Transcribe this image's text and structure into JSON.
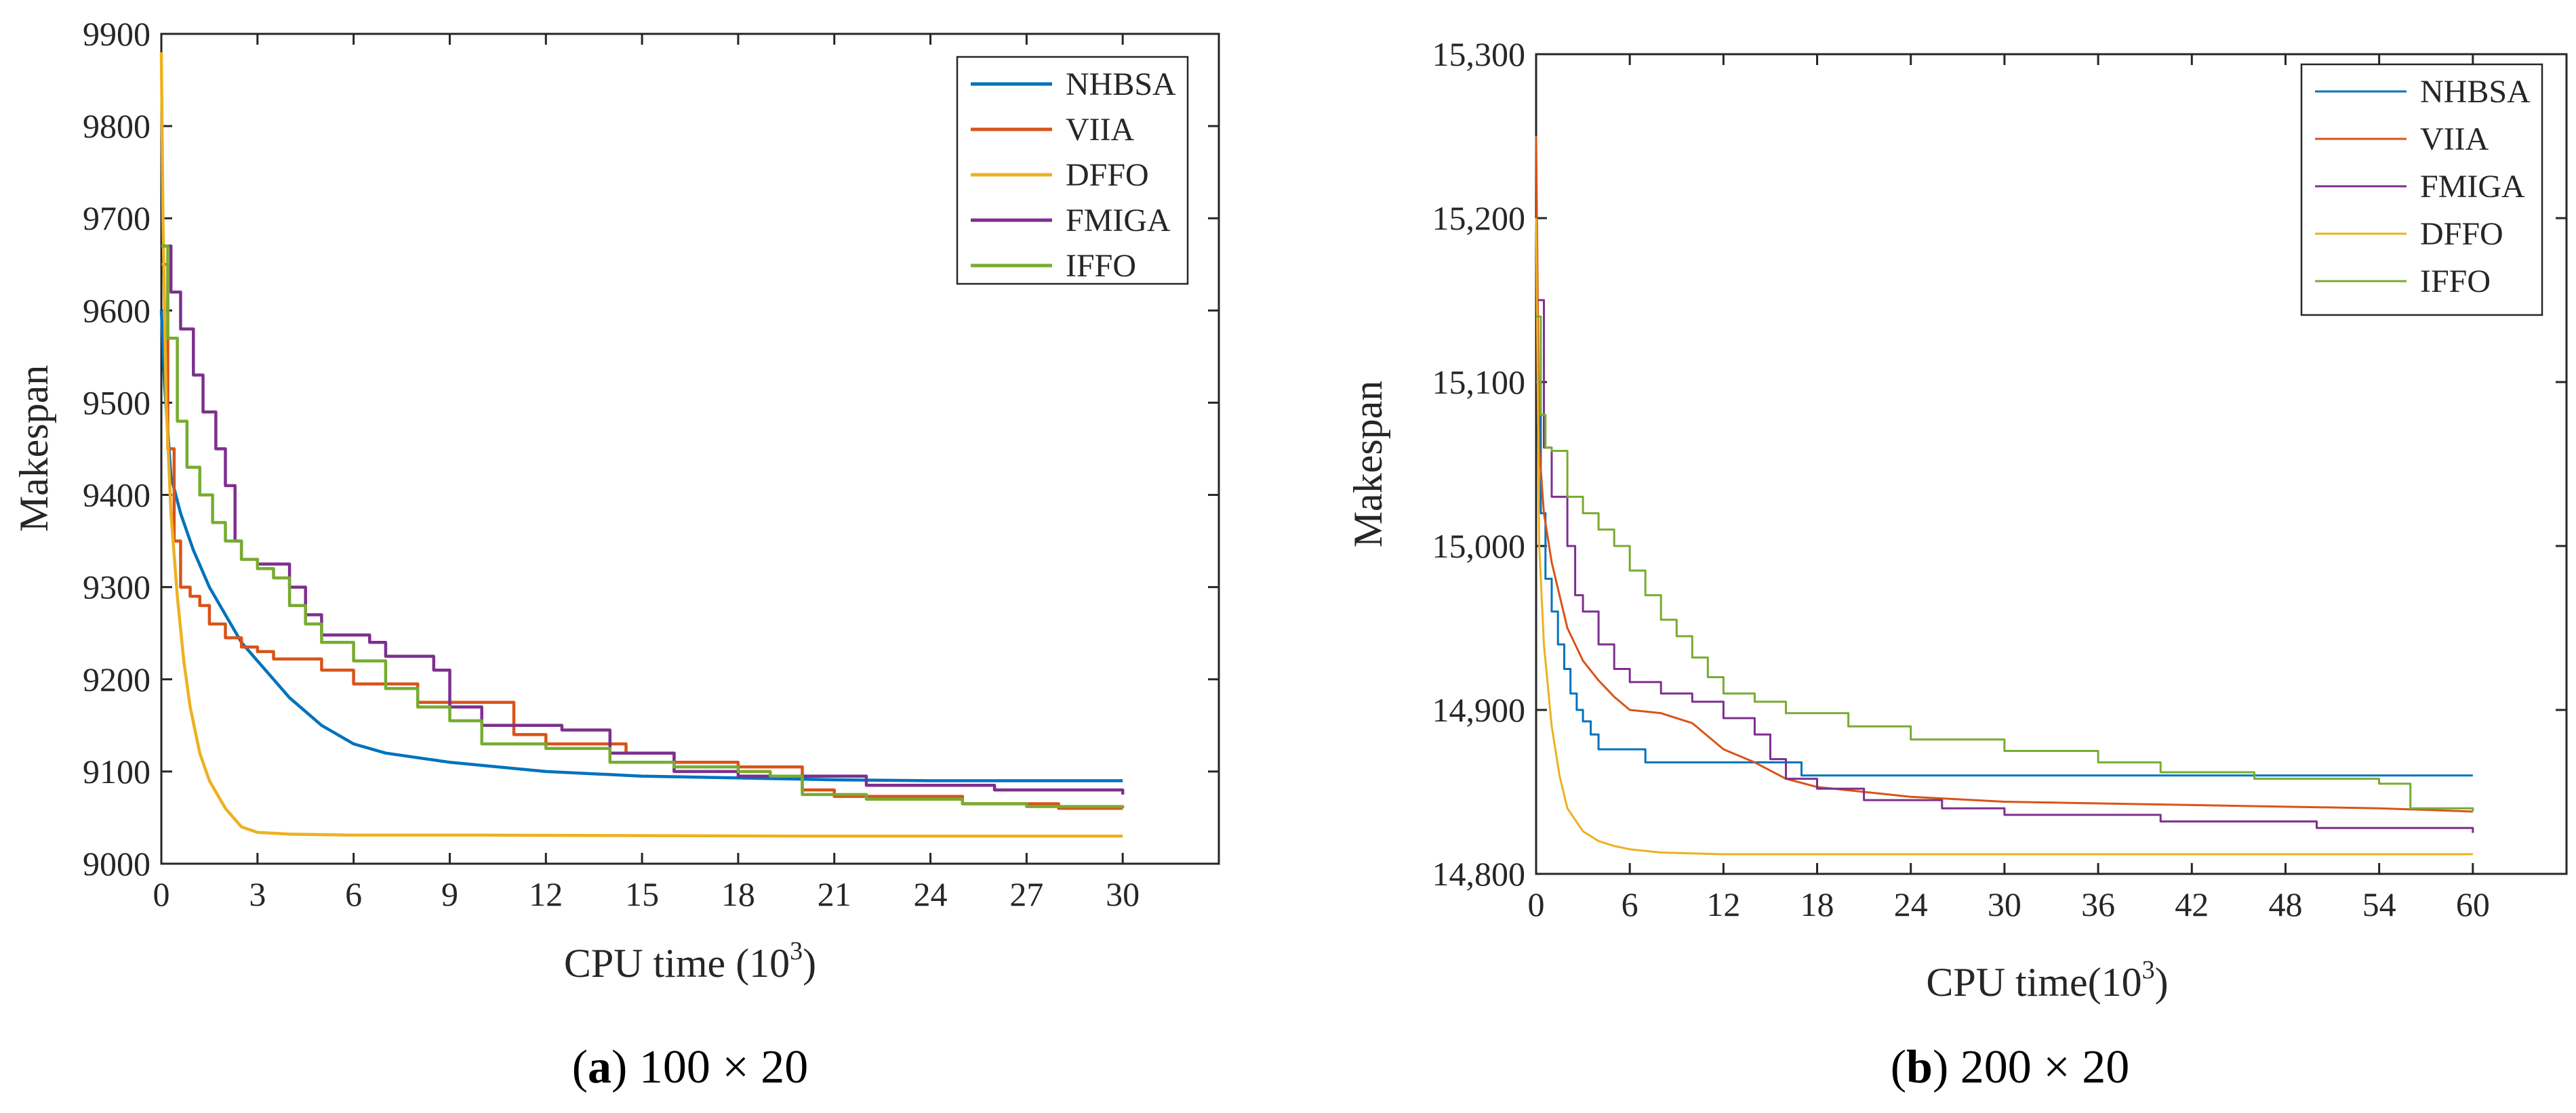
{
  "chart_data": [
    {
      "type": "line",
      "caption": {
        "label": "a",
        "text": "100 × 20"
      },
      "xlabel": "CPU time (10",
      "xlabel_sup": "3",
      "xlabel_close": ")",
      "ylabel": "Makespan",
      "xlim": [
        0,
        33
      ],
      "ylim": [
        9000,
        9900
      ],
      "xticks": [
        0,
        3,
        6,
        9,
        12,
        15,
        18,
        21,
        24,
        27,
        30
      ],
      "xtick_labels": [
        "0",
        "3",
        "6",
        "9",
        "12",
        "15",
        "18",
        "21",
        "24",
        "27",
        "30"
      ],
      "yticks": [
        9000,
        9100,
        9200,
        9300,
        9400,
        9500,
        9600,
        9700,
        9800,
        9900
      ],
      "ytick_labels": [
        "9000",
        "9100",
        "9200",
        "9300",
        "9400",
        "9500",
        "9600",
        "9700",
        "9800",
        "9900"
      ],
      "legend_position": "top-right",
      "series": [
        {
          "name": "NHBSA",
          "color": "#0072BD",
          "step": false,
          "x": [
            0,
            0.1,
            0.3,
            0.6,
            1.0,
            1.5,
            2.0,
            2.5,
            3.0,
            4.0,
            5.0,
            6.0,
            7.0,
            9.0,
            12.0,
            15.0,
            18.0,
            21.0,
            24.0,
            30.0
          ],
          "y": [
            9600,
            9520,
            9420,
            9380,
            9340,
            9300,
            9270,
            9240,
            9220,
            9180,
            9150,
            9130,
            9120,
            9110,
            9100,
            9095,
            9093,
            9091,
            9090,
            9090
          ]
        },
        {
          "name": "VIIA",
          "color": "#D95319",
          "step": true,
          "x": [
            0,
            0.2,
            0.4,
            0.6,
            0.9,
            1.2,
            1.5,
            2.0,
            2.5,
            3.0,
            3.5,
            5.0,
            6.0,
            8.0,
            11.0,
            12.0,
            14.5,
            16.0,
            18.0,
            20.0,
            21.0,
            25.0,
            28.0,
            30.0
          ],
          "y": [
            9650,
            9450,
            9350,
            9300,
            9290,
            9280,
            9260,
            9245,
            9235,
            9230,
            9222,
            9210,
            9195,
            9175,
            9140,
            9130,
            9120,
            9110,
            9105,
            9080,
            9073,
            9065,
            9060,
            9060
          ]
        },
        {
          "name": "DFFO",
          "color": "#EDB120",
          "step": false,
          "x": [
            0,
            0.05,
            0.15,
            0.3,
            0.5,
            0.7,
            0.9,
            1.2,
            1.5,
            2.0,
            2.5,
            3.0,
            4.0,
            6.0,
            10.0,
            20.0,
            30.0
          ],
          "y": [
            9880,
            9700,
            9500,
            9380,
            9290,
            9220,
            9170,
            9120,
            9090,
            9060,
            9040,
            9034,
            9032,
            9031,
            9031,
            9030,
            9030
          ]
        },
        {
          "name": "FMIGA",
          "color": "#7E2F8E",
          "step": true,
          "x": [
            0,
            0.3,
            0.6,
            1.0,
            1.3,
            1.7,
            2.0,
            2.3,
            2.5,
            3.0,
            4.0,
            4.5,
            5.0,
            6.5,
            7.0,
            8.5,
            9.0,
            10.0,
            12.5,
            14.0,
            16.0,
            18.0,
            22.0,
            26.0,
            29.5,
            30.0
          ],
          "y": [
            9670,
            9620,
            9580,
            9530,
            9490,
            9450,
            9410,
            9350,
            9330,
            9325,
            9300,
            9270,
            9248,
            9240,
            9225,
            9210,
            9170,
            9150,
            9145,
            9120,
            9100,
            9095,
            9085,
            9080,
            9080,
            9075
          ]
        },
        {
          "name": "IFFO",
          "color": "#77AC30",
          "step": true,
          "x": [
            0,
            0.2,
            0.5,
            0.8,
            1.2,
            1.6,
            2.0,
            2.5,
            3.0,
            3.5,
            4.0,
            4.5,
            5.0,
            6.0,
            7.0,
            8.0,
            9.0,
            10.0,
            12.0,
            14.0,
            16.0,
            18.0,
            19.0,
            20.0,
            22.0,
            25.0,
            27.0,
            30.0
          ],
          "y": [
            9670,
            9570,
            9480,
            9430,
            9400,
            9370,
            9350,
            9330,
            9320,
            9310,
            9280,
            9260,
            9240,
            9220,
            9190,
            9170,
            9155,
            9130,
            9125,
            9110,
            9105,
            9100,
            9095,
            9075,
            9070,
            9065,
            9062,
            9060
          ]
        }
      ]
    },
    {
      "type": "line",
      "caption": {
        "label": "b",
        "text": "200 × 20"
      },
      "xlabel": "CPU time(10",
      "xlabel_sup": "3",
      "xlabel_close": ")",
      "ylabel": "Makespan",
      "xlim": [
        0,
        66
      ],
      "ylim": [
        14800,
        15300
      ],
      "xticks": [
        0,
        6,
        12,
        18,
        24,
        30,
        36,
        42,
        48,
        54,
        60
      ],
      "xtick_labels": [
        "0",
        "6",
        "12",
        "18",
        "24",
        "30",
        "36",
        "42",
        "48",
        "54",
        "60"
      ],
      "yticks": [
        14800,
        14900,
        15000,
        15100,
        15200,
        15300
      ],
      "ytick_labels": [
        "14,800",
        "14,900",
        "15,000",
        "15,100",
        "15,200",
        "15,300"
      ],
      "legend_position": "top-right",
      "series": [
        {
          "name": "NHBSA",
          "color": "#0072BD",
          "step": true,
          "x": [
            0,
            0.3,
            0.6,
            1.0,
            1.4,
            1.8,
            2.2,
            2.6,
            3.0,
            3.5,
            4.0,
            7.0,
            10.0,
            17.0,
            60.0
          ],
          "y": [
            15100,
            15020,
            14980,
            14960,
            14940,
            14925,
            14910,
            14900,
            14893,
            14885,
            14876,
            14868,
            14868,
            14860,
            14860
          ]
        },
        {
          "name": "VIIA",
          "color": "#D95319",
          "step": false,
          "x": [
            0,
            0.2,
            0.5,
            1.0,
            1.5,
            2.0,
            3.0,
            4.0,
            5.0,
            6.0,
            8.0,
            10.0,
            12.0,
            14.0,
            16.0,
            18.0,
            24.0,
            30.0,
            42.0,
            54.0,
            60.0
          ],
          "y": [
            15250,
            15060,
            15020,
            14990,
            14970,
            14950,
            14930,
            14918,
            14908,
            14900,
            14898,
            14892,
            14876,
            14868,
            14858,
            14853,
            14847,
            14844,
            14842,
            14840,
            14838
          ]
        },
        {
          "name": "FMIGA",
          "color": "#7E2F8E",
          "step": true,
          "x": [
            0,
            0.5,
            1.0,
            2.0,
            2.5,
            3.0,
            4.0,
            5.0,
            6.0,
            8.0,
            10.0,
            12.0,
            14.0,
            15.0,
            16.0,
            18.0,
            21.0,
            26.0,
            30.0,
            40.0,
            50.0,
            60.0
          ],
          "y": [
            15150,
            15060,
            15030,
            15000,
            14970,
            14960,
            14940,
            14925,
            14917,
            14910,
            14905,
            14895,
            14885,
            14870,
            14858,
            14852,
            14845,
            14840,
            14836,
            14832,
            14828,
            14825
          ]
        },
        {
          "name": "DFFO",
          "color": "#EDB120",
          "step": false,
          "x": [
            0,
            0.2,
            0.5,
            1.0,
            1.5,
            2.0,
            3.0,
            4.0,
            5.0,
            6.0,
            8.0,
            12.0,
            20.0,
            30.0,
            60.0
          ],
          "y": [
            15200,
            15000,
            14940,
            14890,
            14860,
            14840,
            14826,
            14820,
            14817,
            14815,
            14813,
            14812,
            14812,
            14812,
            14812
          ]
        },
        {
          "name": "IFFO",
          "color": "#77AC30",
          "step": true,
          "x": [
            0,
            0.3,
            0.6,
            1.0,
            2.0,
            3.0,
            4.0,
            5.0,
            6.0,
            7.0,
            8.0,
            9.0,
            10.0,
            11.0,
            12.0,
            14.0,
            16.0,
            20.0,
            24.0,
            30.0,
            36.0,
            40.0,
            46.0,
            54.0,
            56.0,
            60.0
          ],
          "y": [
            15140,
            15080,
            15060,
            15058,
            15030,
            15020,
            15010,
            15000,
            14985,
            14970,
            14955,
            14945,
            14932,
            14920,
            14910,
            14905,
            14898,
            14890,
            14882,
            14875,
            14868,
            14862,
            14858,
            14855,
            14840,
            14838
          ]
        }
      ]
    }
  ]
}
